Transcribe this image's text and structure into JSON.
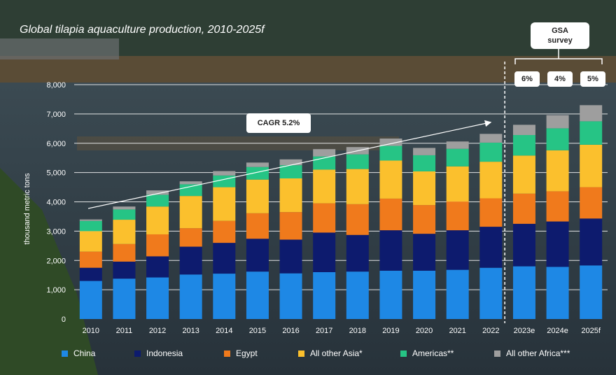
{
  "title": "Global tilapia aquaculture production, 2010-2025f",
  "annotations": {
    "gsa_line1": "GSA",
    "gsa_line2": "survey",
    "gsa_percents": [
      "6%",
      "4%",
      "5%"
    ],
    "cagr": "CAGR 5.2%"
  },
  "colors": {
    "China": "#1e88e5",
    "Indonesia": "#0d1b6e",
    "Egypt": "#f07a1c",
    "All other Asia*": "#fbc02d",
    "Americas**": "#26c485",
    "All other Africa***": "#9e9e9e"
  },
  "chart_data": {
    "type": "bar",
    "stacked": true,
    "title": "Global tilapia aquaculture production, 2010-2025f",
    "xlabel": "",
    "ylabel": "thousand metric tons",
    "ylim": [
      0,
      8000
    ],
    "yticks": [
      "0",
      "1,000",
      "2,000",
      "3,000",
      "4,000",
      "5,000",
      "6,000",
      "7,000",
      "8,000"
    ],
    "grid": true,
    "legend_position": "bottom",
    "categories": [
      "2010",
      "2011",
      "2012",
      "2013",
      "2014",
      "2015",
      "2016",
      "2017",
      "2018",
      "2019",
      "2020",
      "2021",
      "2022",
      "2023e",
      "2024e",
      "2025f"
    ],
    "series": [
      {
        "name": "China",
        "values": [
          1300,
          1380,
          1420,
          1520,
          1550,
          1620,
          1560,
          1600,
          1620,
          1650,
          1650,
          1680,
          1750,
          1800,
          1780,
          1830
        ]
      },
      {
        "name": "Indonesia",
        "values": [
          450,
          580,
          720,
          950,
          1050,
          1120,
          1150,
          1350,
          1250,
          1380,
          1260,
          1350,
          1400,
          1450,
          1550,
          1600
        ]
      },
      {
        "name": "Egypt",
        "values": [
          550,
          600,
          750,
          630,
          750,
          870,
          940,
          1000,
          1050,
          1080,
          980,
          980,
          970,
          1030,
          1030,
          1070
        ]
      },
      {
        "name": "All other Asia*",
        "values": [
          700,
          830,
          950,
          1100,
          1150,
          1150,
          1150,
          1150,
          1200,
          1300,
          1150,
          1200,
          1250,
          1300,
          1400,
          1450
        ]
      },
      {
        "name": "Americas**",
        "values": [
          350,
          350,
          400,
          400,
          400,
          430,
          450,
          450,
          500,
          500,
          550,
          600,
          650,
          700,
          750,
          800
        ]
      },
      {
        "name": "All other Africa***",
        "values": [
          50,
          100,
          150,
          100,
          150,
          150,
          200,
          250,
          250,
          250,
          250,
          250,
          300,
          350,
          450,
          550
        ]
      }
    ],
    "annotations": [
      "CAGR 5.2%",
      "GSA survey",
      "6%",
      "4%",
      "5%"
    ]
  }
}
